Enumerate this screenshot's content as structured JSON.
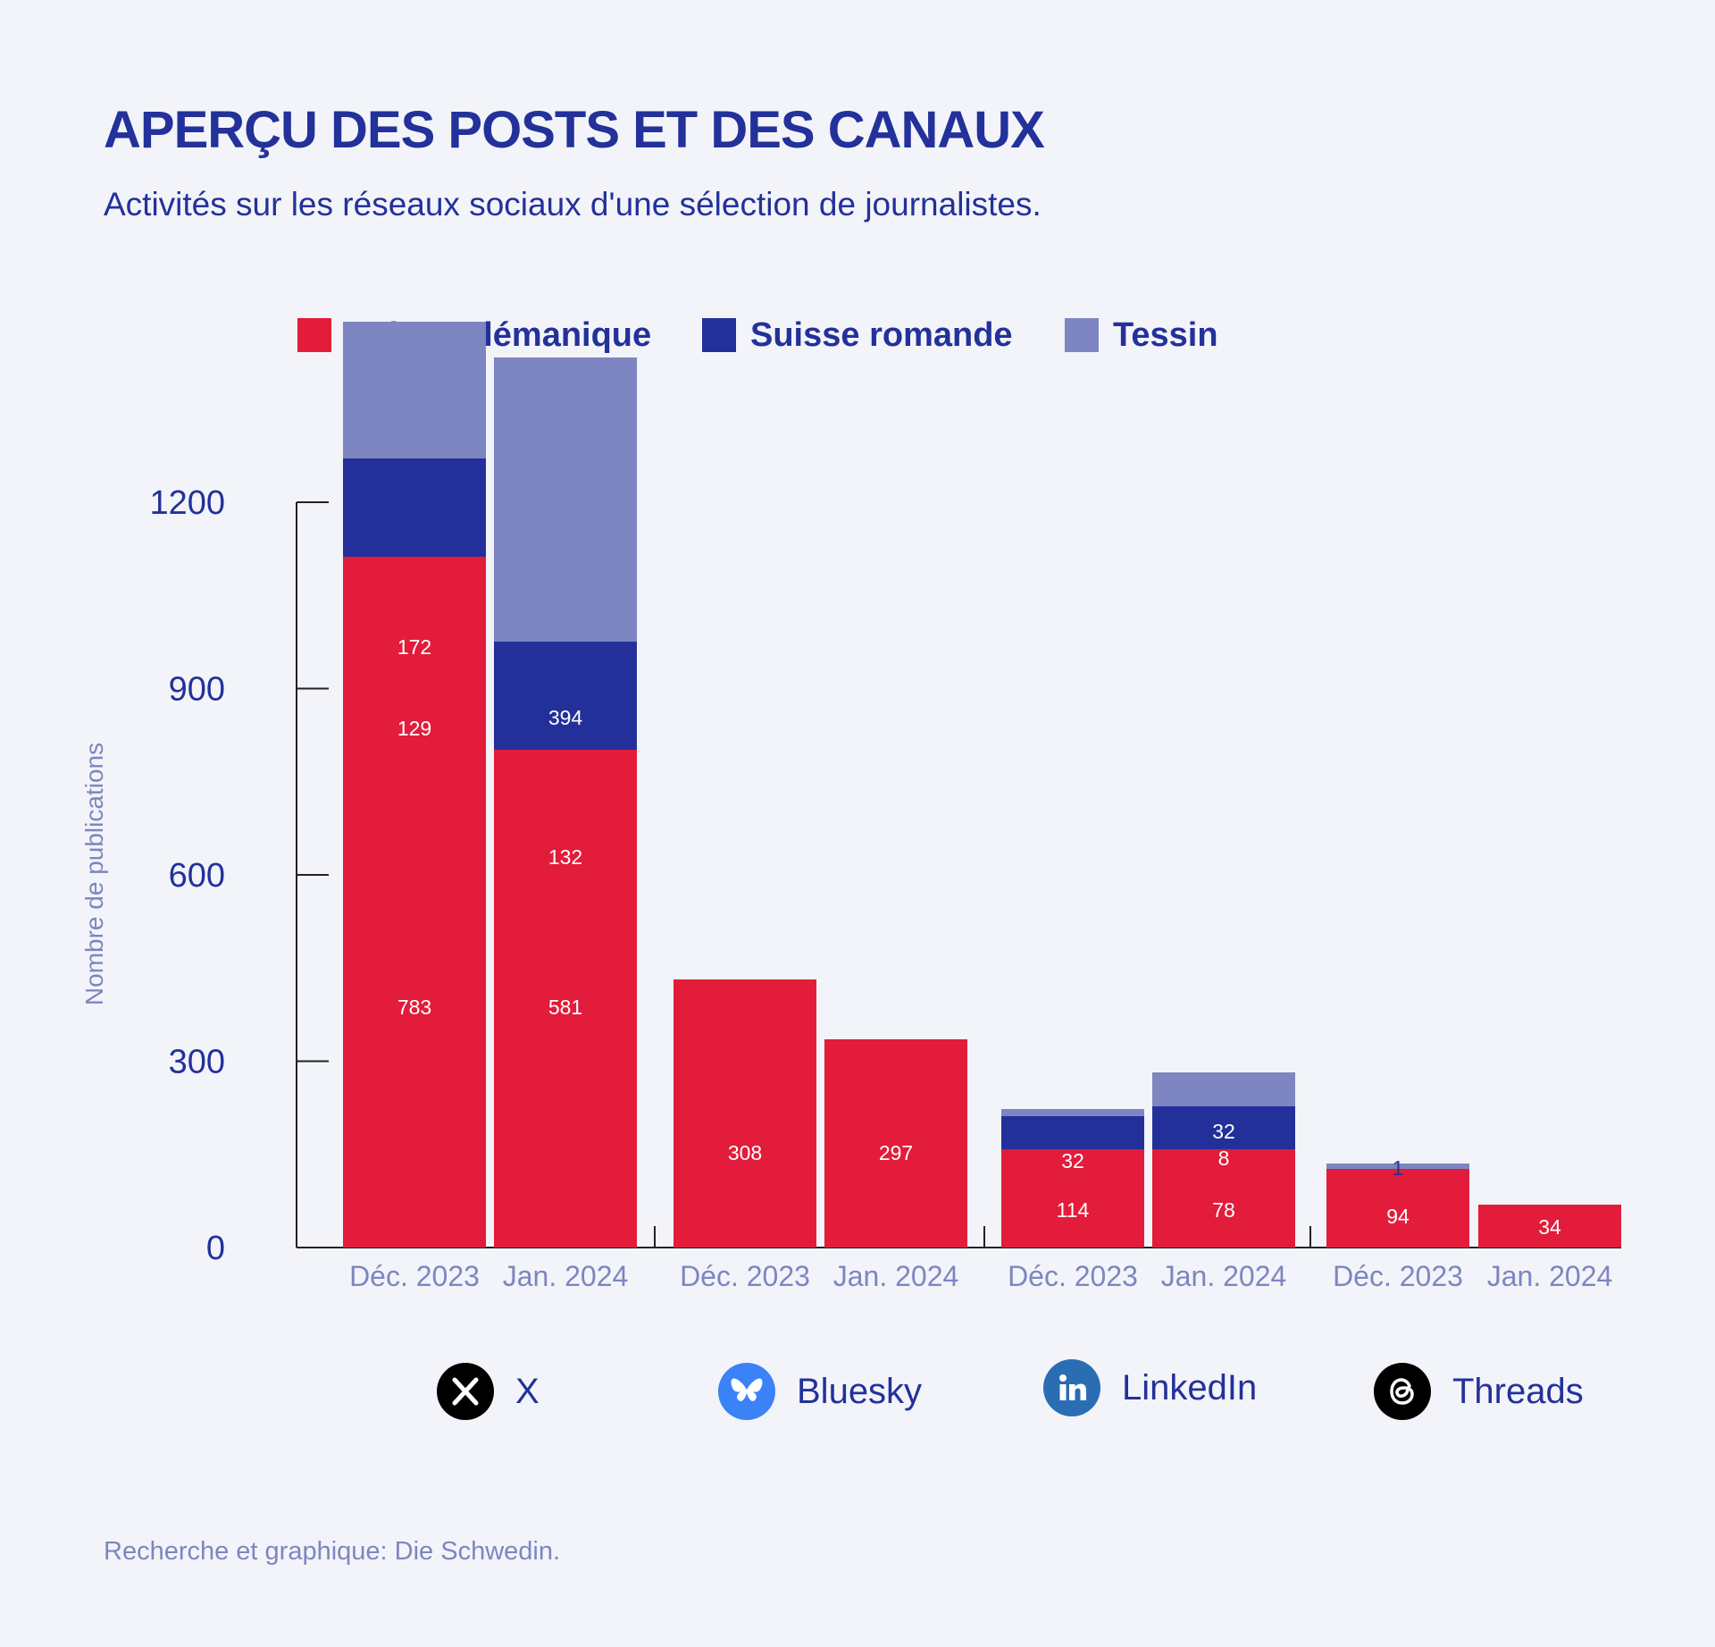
{
  "title": "APERÇU DES POSTS ET DES CANAUX",
  "subtitle": "Activités sur les réseaux sociaux d'une sélection de journalistes.",
  "source": "Recherche et graphique: Die Schwedin.",
  "colors": {
    "text": "#23319a",
    "muted": "#7d86c1",
    "background": "#f3f4f9",
    "axis": "#222222"
  },
  "platforms": [
    {
      "label": "X",
      "icon": "x-logo-icon"
    },
    {
      "label": "Bluesky",
      "icon": "butterfly-icon"
    },
    {
      "label": "LinkedIn",
      "icon": "linkedin-icon"
    },
    {
      "label": "Threads",
      "icon": "threads-at-icon"
    }
  ],
  "chart_data": {
    "type": "bar",
    "stacked": true,
    "ylabel": "Nombre de publications",
    "ylim": [
      0,
      1200
    ],
    "yticks": [
      0,
      300,
      600,
      900,
      1200
    ],
    "grid": false,
    "legend_position": "top",
    "categories": [
      {
        "group": "X",
        "period": "Déc. 2023"
      },
      {
        "group": "X",
        "period": "Jan. 2024"
      },
      {
        "group": "Bluesky",
        "period": "Déc. 2023"
      },
      {
        "group": "Bluesky",
        "period": "Jan. 2024"
      },
      {
        "group": "LinkedIn",
        "period": "Déc. 2023"
      },
      {
        "group": "LinkedIn",
        "period": "Jan. 2024"
      },
      {
        "group": "Threads",
        "period": "Déc. 2023"
      },
      {
        "group": "Threads",
        "period": "Jan. 2024"
      }
    ],
    "series": [
      {
        "name": "Suisse alémanique",
        "color": "#e21c3a",
        "values": [
          783,
          581,
          308,
          297,
          114,
          78,
          94,
          34
        ],
        "heights": [
          773,
          557,
          300,
          233,
          110,
          110,
          88,
          48
        ]
      },
      {
        "name": "Suisse romande",
        "color": "#23309a",
        "values": [
          129,
          132,
          0,
          0,
          32,
          8,
          0,
          0
        ],
        "heights": [
          110,
          121,
          0,
          0,
          37,
          48,
          0,
          0
        ]
      },
      {
        "name": "Tessin",
        "color": "#7d86c1",
        "values": [
          172,
          394,
          0,
          0,
          2,
          32,
          1,
          0
        ],
        "heights": [
          153,
          318,
          0,
          0,
          8,
          38,
          6,
          0
        ]
      }
    ]
  }
}
